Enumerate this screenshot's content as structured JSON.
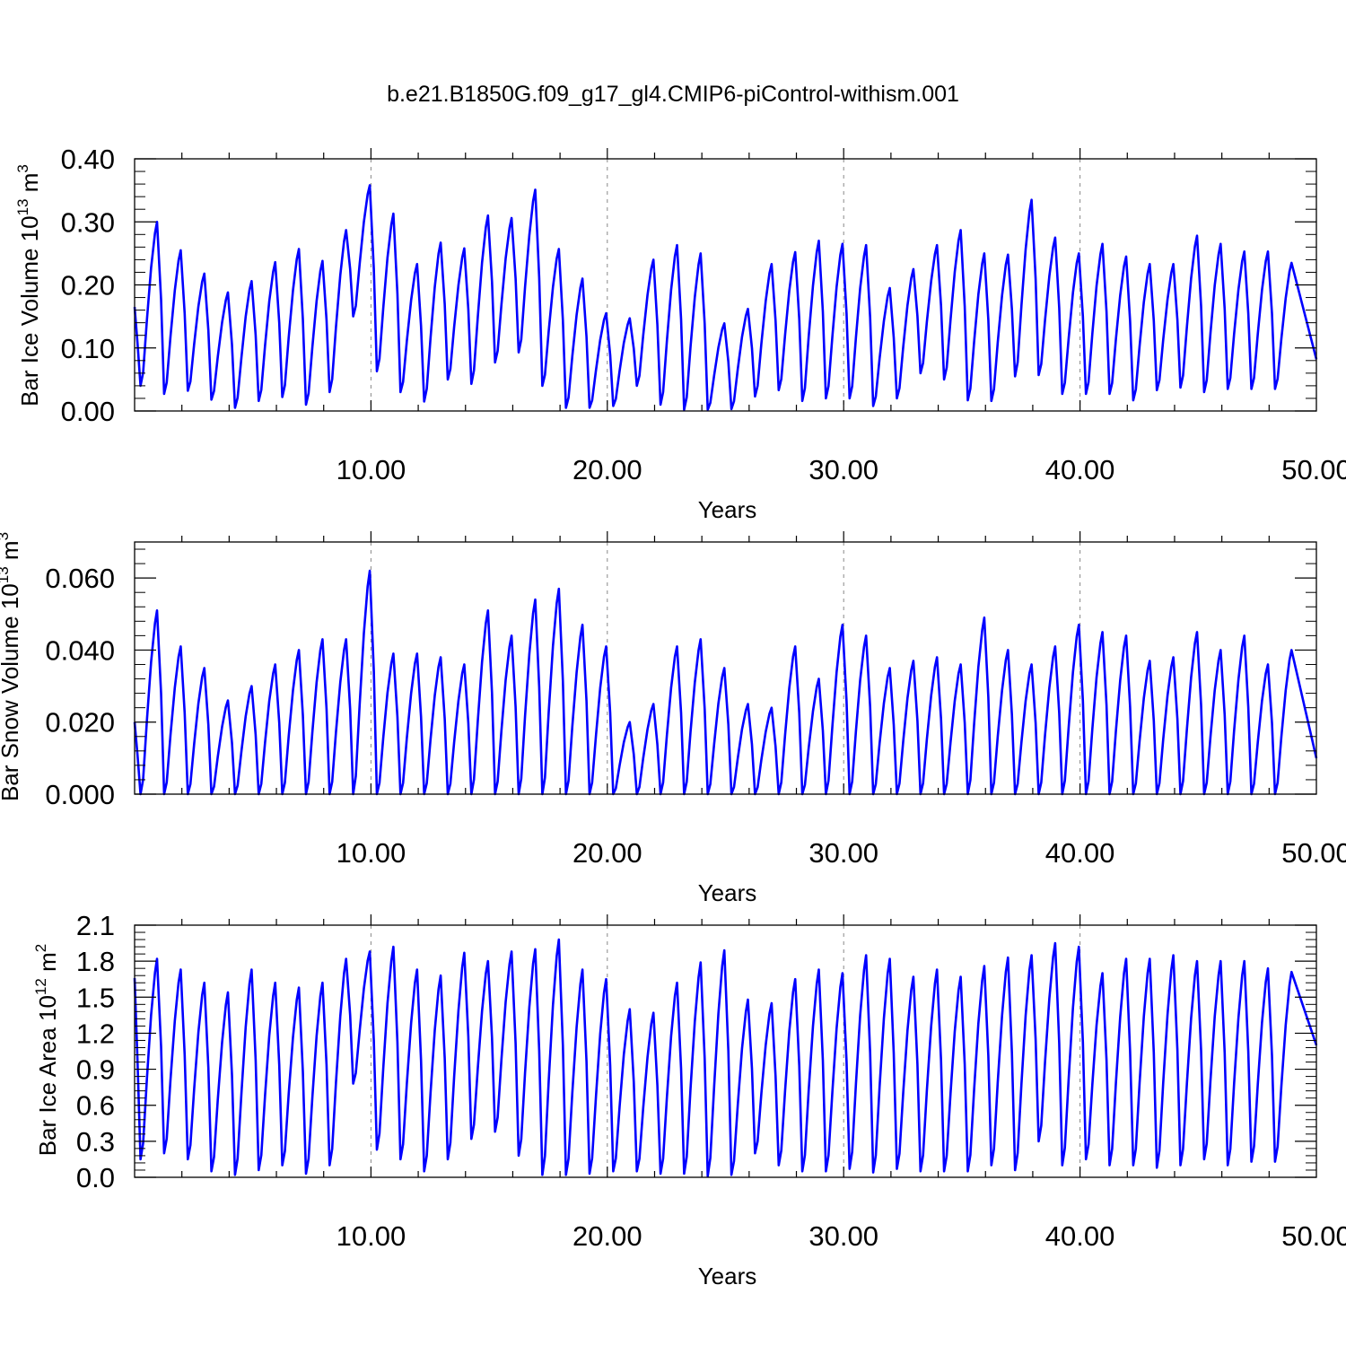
{
  "title": "b.e21.B1850G.f09_g17_gl4.CMIP6-piControl-withism.001",
  "colors": {
    "series": "#0000ff",
    "axis": "#000000",
    "grid": "#888888"
  },
  "chart_data": [
    {
      "type": "line",
      "xlabel": "Years",
      "ylabel": {
        "prefix": "Bar Ice Volume 10",
        "exponent": "13",
        "unit": " m",
        "unit_exponent": "3"
      },
      "xlim": [
        0,
        50
      ],
      "ylim": [
        0,
        0.4
      ],
      "xticks": [
        10,
        20,
        30,
        40,
        50
      ],
      "xtick_labels": [
        "10.00",
        "20.00",
        "30.00",
        "40.00",
        "50.00"
      ],
      "yticks": [
        0,
        0.1,
        0.2,
        0.3,
        0.4
      ],
      "ytick_labels": [
        "0.00",
        "0.10",
        "0.20",
        "0.30",
        "0.40"
      ],
      "grid": "dashed vertical at major x ticks",
      "series": [
        {
          "peaks": [
            0.3,
            0.255,
            0.218,
            0.188,
            0.206,
            0.236,
            0.257,
            0.238,
            0.287,
            0.358,
            0.313,
            0.233,
            0.267,
            0.258,
            0.31,
            0.306,
            0.351,
            0.257,
            0.21,
            0.155,
            0.147,
            0.24,
            0.263,
            0.25,
            0.139,
            0.162,
            0.233,
            0.252,
            0.27,
            0.265,
            0.263,
            0.195,
            0.225,
            0.263,
            0.287,
            0.25,
            0.248,
            0.335,
            0.275,
            0.25,
            0.265,
            0.245,
            0.233,
            0.233,
            0.278,
            0.265,
            0.253,
            0.253,
            0.235
          ],
          "troughs": [
            0.04,
            0.027,
            0.032,
            0.018,
            0.005,
            0.016,
            0.022,
            0.01,
            0.03,
            0.15,
            0.063,
            0.03,
            0.015,
            0.05,
            0.043,
            0.077,
            0.093,
            0.04,
            0.005,
            0.005,
            0.008,
            0.04,
            0.01,
            0.002,
            0.002,
            0.003,
            0.023,
            0.033,
            0.016,
            0.02,
            0.02,
            0.008,
            0.02,
            0.06,
            0.05,
            0.017,
            0.016,
            0.055,
            0.057,
            0.027,
            0.027,
            0.027,
            0.017,
            0.033,
            0.037,
            0.03,
            0.035,
            0.035,
            0.035
          ],
          "start": 0.165,
          "end": 0.082
        }
      ]
    },
    {
      "type": "line",
      "xlabel": "Years",
      "ylabel": {
        "prefix": "Bar Snow Volume 10",
        "exponent": "13",
        "unit": " m",
        "unit_exponent": "3"
      },
      "xlim": [
        0,
        50
      ],
      "ylim": [
        0,
        0.07
      ],
      "xticks": [
        10,
        20,
        30,
        40,
        50
      ],
      "xtick_labels": [
        "10.00",
        "20.00",
        "30.00",
        "40.00",
        "50.00"
      ],
      "yticks": [
        0,
        0.02,
        0.04,
        0.06
      ],
      "ytick_labels": [
        "0.000",
        "0.020",
        "0.040",
        "0.060"
      ],
      "grid": "dashed vertical at major x ticks",
      "series": [
        {
          "peaks": [
            0.051,
            0.041,
            0.035,
            0.026,
            0.03,
            0.036,
            0.04,
            0.043,
            0.043,
            0.062,
            0.039,
            0.039,
            0.038,
            0.036,
            0.051,
            0.044,
            0.054,
            0.057,
            0.047,
            0.041,
            0.02,
            0.025,
            0.041,
            0.043,
            0.035,
            0.025,
            0.024,
            0.041,
            0.032,
            0.047,
            0.044,
            0.035,
            0.037,
            0.038,
            0.036,
            0.049,
            0.04,
            0.036,
            0.041,
            0.047,
            0.045,
            0.044,
            0.037,
            0.038,
            0.045,
            0.04,
            0.044,
            0.036,
            0.04
          ],
          "troughs": [
            0.0,
            0.0,
            0.0,
            0.0,
            0.0,
            0.0,
            0.0,
            0.0,
            0.0,
            0.0,
            0.0,
            0.0,
            0.0,
            0.0,
            0.0,
            0.0,
            0.0,
            0.0,
            0.0,
            0.0,
            0.0,
            0.0,
            0.0,
            0.0,
            0.0,
            0.0,
            0.0,
            0.0,
            0.0,
            0.0,
            0.0,
            0.0,
            0.0,
            0.0,
            0.0,
            0.0,
            0.0,
            0.0,
            0.0,
            0.0,
            0.0,
            0.0,
            0.0,
            0.0,
            0.0,
            0.0,
            0.0,
            0.0,
            0.0
          ],
          "start": 0.02,
          "end": 0.01
        }
      ]
    },
    {
      "type": "line",
      "xlabel": "Years",
      "ylabel": {
        "prefix": "Bar Ice Area 10",
        "exponent": "12",
        "unit": " m",
        "unit_exponent": "2"
      },
      "xlim": [
        0,
        50
      ],
      "ylim": [
        0,
        2.1
      ],
      "xticks": [
        10,
        20,
        30,
        40,
        50
      ],
      "xtick_labels": [
        "10.00",
        "20.00",
        "30.00",
        "40.00",
        "50.00"
      ],
      "yticks": [
        0,
        0.3,
        0.6,
        0.9,
        1.2,
        1.5,
        1.8,
        2.1
      ],
      "ytick_labels": [
        "0.0",
        "0.3",
        "0.6",
        "0.9",
        "1.2",
        "1.5",
        "1.8",
        "2.1"
      ],
      "grid": "dashed vertical at major x ticks",
      "series": [
        {
          "peaks": [
            1.82,
            1.73,
            1.62,
            1.54,
            1.73,
            1.62,
            1.58,
            1.62,
            1.82,
            1.88,
            1.92,
            1.73,
            1.68,
            1.87,
            1.8,
            1.88,
            1.9,
            1.98,
            1.73,
            1.65,
            1.4,
            1.37,
            1.62,
            1.79,
            1.89,
            1.48,
            1.45,
            1.65,
            1.73,
            1.7,
            1.85,
            1.82,
            1.67,
            1.73,
            1.67,
            1.76,
            1.83,
            1.85,
            1.95,
            1.92,
            1.7,
            1.82,
            1.82,
            1.85,
            1.8,
            1.8,
            1.8,
            1.74,
            1.71
          ],
          "troughs": [
            0.15,
            0.2,
            0.15,
            0.05,
            0.02,
            0.06,
            0.1,
            0.03,
            0.1,
            0.78,
            0.23,
            0.15,
            0.05,
            0.15,
            0.32,
            0.38,
            0.18,
            0.02,
            0.02,
            0.03,
            0.05,
            0.05,
            0.03,
            0.03,
            0.01,
            0.02,
            0.2,
            0.1,
            0.05,
            0.05,
            0.07,
            0.04,
            0.07,
            0.05,
            0.05,
            0.05,
            0.1,
            0.06,
            0.3,
            0.1,
            0.15,
            0.1,
            0.1,
            0.08,
            0.1,
            0.15,
            0.1,
            0.13,
            0.13
          ],
          "start": 1.66,
          "end": 1.1
        }
      ]
    }
  ]
}
